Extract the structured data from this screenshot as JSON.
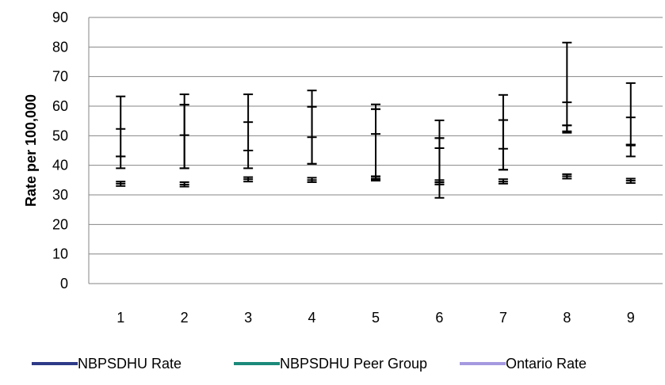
{
  "chart_data": {
    "type": "errorbar",
    "title": "",
    "xlabel": "",
    "ylabel": "Rate per 100,000",
    "ylim": [
      0,
      90
    ],
    "yticks": [
      0,
      10,
      20,
      30,
      40,
      50,
      60,
      70,
      80,
      90
    ],
    "categories": [
      "1",
      "2",
      "3",
      "4",
      "5",
      "6",
      "7",
      "8",
      "9"
    ],
    "grid": "horizontal",
    "legend_position": "bottom",
    "series": [
      {
        "name": "NBPSDHU Rate",
        "color": "#2E3A87",
        "points": [
          {
            "low": 43.0,
            "value": 52.3,
            "high": 63.3
          },
          {
            "low": 39.0,
            "value": 50.2,
            "high": 64.0
          },
          {
            "low": 45.0,
            "value": 54.6,
            "high": 64.0
          },
          {
            "low": 40.5,
            "value": 49.5,
            "high": 65.3
          },
          {
            "low": 36.2,
            "value": 50.6,
            "high": 60.6
          },
          {
            "low": 34.3,
            "value": 45.8,
            "high": 55.2
          },
          {
            "low": 38.5,
            "value": 45.6,
            "high": 63.8
          },
          {
            "low": 51.0,
            "value": 61.3,
            "high": 81.5
          },
          {
            "low": 46.7,
            "value": 56.2,
            "high": 67.8
          }
        ]
      },
      {
        "name": "NBPSDHU Peer Group",
        "color": "#1B8A7A",
        "points": [
          {
            "low": 39.0,
            "value": 43.0,
            "high": 43.0
          },
          {
            "low": 39.0,
            "value": 60.5,
            "high": 60.5
          },
          {
            "low": 39.0,
            "value": 45.0,
            "high": 45.0
          },
          {
            "low": 40.5,
            "value": 59.8,
            "high": 59.8
          },
          {
            "low": 35.0,
            "value": 59.0,
            "high": 59.0
          },
          {
            "low": 29.0,
            "value": 49.2,
            "high": 49.2
          },
          {
            "low": 38.5,
            "value": 55.3,
            "high": 55.3
          },
          {
            "low": 51.5,
            "value": 53.5,
            "high": 53.5
          },
          {
            "low": 43.0,
            "value": 47.0,
            "high": 47.0
          }
        ]
      },
      {
        "name": "Ontario Rate",
        "color": "#A59AE0",
        "points": [
          {
            "low": 33.0,
            "value": 33.8,
            "high": 34.5
          },
          {
            "low": 32.8,
            "value": 33.5,
            "high": 34.3
          },
          {
            "low": 34.5,
            "value": 35.3,
            "high": 36.0
          },
          {
            "low": 34.3,
            "value": 35.0,
            "high": 35.8
          },
          {
            "low": 34.8,
            "value": 35.5,
            "high": 36.3
          },
          {
            "low": 33.5,
            "value": 34.2,
            "high": 35.0
          },
          {
            "low": 33.8,
            "value": 34.5,
            "high": 35.3
          },
          {
            "low": 35.5,
            "value": 36.3,
            "high": 37.0
          },
          {
            "low": 34.0,
            "value": 34.8,
            "high": 35.5
          }
        ]
      }
    ]
  }
}
